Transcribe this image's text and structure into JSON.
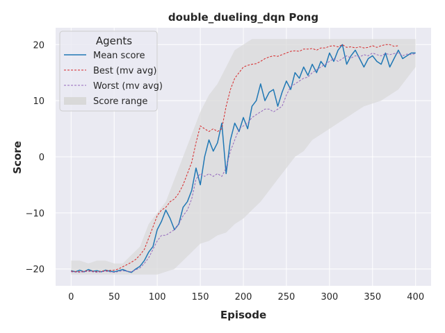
{
  "chart_data": {
    "type": "line",
    "title": "double_dueling_dqn Pong",
    "xlabel": "Episode",
    "ylabel": "Score",
    "xlim": [
      -18,
      418
    ],
    "ylim": [
      -23,
      23
    ],
    "xticks": [
      "0",
      "50",
      "100",
      "150",
      "200",
      "250",
      "300",
      "350",
      "400"
    ],
    "yticks": [
      "−20",
      "−10",
      "0",
      "10",
      "20"
    ],
    "grid": true,
    "legend": {
      "title": "Agents",
      "placement": "upper-left",
      "entries": [
        "Mean score",
        "Best (mv avg)",
        "Worst (mv avg)",
        "Score range"
      ]
    },
    "colors": {
      "mean": "#1f77b4",
      "best": "#d62728",
      "worst": "#9467bd",
      "range": "#d9d9d9",
      "plot_bg": "#eaeaf2",
      "grid": "#ffffff"
    },
    "series": [
      {
        "name": "Mean score",
        "style": "solid",
        "x": [
          0,
          5,
          10,
          15,
          20,
          25,
          30,
          35,
          40,
          45,
          50,
          55,
          60,
          65,
          70,
          75,
          80,
          85,
          90,
          95,
          100,
          105,
          110,
          115,
          120,
          125,
          130,
          135,
          140,
          145,
          150,
          155,
          160,
          165,
          170,
          175,
          180,
          185,
          190,
          195,
          200,
          205,
          210,
          215,
          220,
          225,
          230,
          235,
          240,
          245,
          250,
          255,
          260,
          265,
          270,
          275,
          280,
          285,
          290,
          295,
          300,
          305,
          310,
          315,
          320,
          325,
          330,
          335,
          340,
          345,
          350,
          355,
          360,
          365,
          370,
          375,
          380,
          385,
          390,
          395,
          400
        ],
        "values": [
          -20.3,
          -20.5,
          -20.2,
          -20.5,
          -20.1,
          -20.4,
          -20.3,
          -20.5,
          -20.2,
          -20.4,
          -20.5,
          -20.3,
          -20.1,
          -20.4,
          -20.6,
          -20.0,
          -19.5,
          -18.5,
          -17.0,
          -16.0,
          -13.0,
          -11.5,
          -9.5,
          -11.0,
          -13.0,
          -12.0,
          -9.0,
          -8.0,
          -6.0,
          -2.0,
          -5.0,
          0.0,
          3.0,
          1.0,
          2.5,
          6.0,
          -3.0,
          3.0,
          6.0,
          4.5,
          7.0,
          5.0,
          9.0,
          10.0,
          13.0,
          10.0,
          11.5,
          12.0,
          9.0,
          11.5,
          13.5,
          12.0,
          15.0,
          14.0,
          16.0,
          14.5,
          16.5,
          15.0,
          17.0,
          16.0,
          18.5,
          17.0,
          19.0,
          20.0,
          16.5,
          18.0,
          19.0,
          17.5,
          16.0,
          17.5,
          18.0,
          17.0,
          16.5,
          18.5,
          16.0,
          17.5,
          19.0,
          17.5,
          18.0,
          18.5,
          18.5
        ]
      },
      {
        "name": "Best (mv avg)",
        "style": "dashed",
        "x": [
          0,
          10,
          20,
          30,
          40,
          50,
          55,
          60,
          65,
          70,
          75,
          80,
          85,
          90,
          95,
          100,
          105,
          110,
          115,
          120,
          125,
          130,
          135,
          140,
          145,
          150,
          155,
          160,
          165,
          170,
          175,
          180,
          185,
          190,
          195,
          200,
          205,
          210,
          215,
          220,
          225,
          230,
          235,
          240,
          245,
          250,
          255,
          260,
          265,
          270,
          275,
          280,
          285,
          290,
          295,
          300,
          305,
          310,
          315,
          320,
          325,
          330,
          335,
          340,
          345,
          350,
          355,
          360,
          365,
          370,
          375,
          380
        ],
        "values": [
          -20.4,
          -20.5,
          -20.3,
          -20.5,
          -20.3,
          -20.2,
          -20.0,
          -19.6,
          -19.2,
          -18.8,
          -18.3,
          -17.5,
          -16.5,
          -14.5,
          -12.5,
          -10.5,
          -9.5,
          -9.0,
          -8.0,
          -7.5,
          -6.5,
          -5.0,
          -3.0,
          -1.0,
          2.5,
          5.5,
          5.0,
          4.5,
          5.0,
          4.5,
          5.0,
          9.0,
          12.0,
          14.0,
          15.0,
          16.0,
          16.3,
          16.5,
          16.6,
          17.0,
          17.5,
          17.8,
          18.0,
          17.9,
          18.2,
          18.5,
          18.8,
          18.9,
          18.8,
          19.2,
          19.2,
          19.3,
          19.0,
          19.4,
          19.4,
          19.7,
          19.8,
          19.6,
          20.0,
          19.5,
          19.6,
          19.4,
          19.6,
          19.4,
          19.5,
          19.8,
          19.5,
          19.8,
          20.0,
          20.0,
          19.7,
          19.8
        ]
      },
      {
        "name": "Worst (mv avg)",
        "style": "dashed",
        "x": [
          0,
          10,
          20,
          30,
          40,
          50,
          60,
          70,
          80,
          85,
          90,
          95,
          100,
          105,
          110,
          115,
          120,
          125,
          130,
          135,
          140,
          145,
          150,
          155,
          160,
          165,
          170,
          175,
          180,
          185,
          190,
          195,
          200,
          205,
          210,
          215,
          220,
          225,
          230,
          235,
          240,
          245,
          250,
          255,
          260,
          265,
          270,
          275,
          280,
          285,
          290,
          295,
          300,
          305,
          310,
          315,
          320,
          325,
          330,
          335,
          340,
          345,
          350,
          355,
          360,
          365,
          370,
          375,
          380,
          385,
          390,
          395,
          400
        ],
        "values": [
          -20.5,
          -20.6,
          -20.4,
          -20.6,
          -20.4,
          -20.6,
          -20.3,
          -20.5,
          -19.8,
          -19.0,
          -18.0,
          -16.5,
          -15.0,
          -14.0,
          -14.0,
          -13.5,
          -13.0,
          -12.0,
          -10.5,
          -9.5,
          -7.5,
          -4.0,
          -3.0,
          -3.5,
          -3.0,
          -3.5,
          -3.0,
          -3.5,
          -2.0,
          1.0,
          3.0,
          5.0,
          5.5,
          6.0,
          7.0,
          7.5,
          8.0,
          8.5,
          8.5,
          8.0,
          8.5,
          9.0,
          11.0,
          12.5,
          13.0,
          13.5,
          14.0,
          14.2,
          15.0,
          15.5,
          16.0,
          16.5,
          17.0,
          17.5,
          17.0,
          17.5,
          18.0,
          17.6,
          18.0,
          17.8,
          18.2,
          18.0,
          18.5,
          18.2,
          18.0,
          18.4,
          18.2,
          18.4,
          18.5,
          18.0,
          18.3,
          18.2,
          18.4
        ]
      },
      {
        "name": "Score range",
        "type": "area",
        "x": [
          0,
          10,
          20,
          30,
          40,
          50,
          60,
          70,
          80,
          90,
          100,
          110,
          120,
          130,
          140,
          150,
          160,
          170,
          180,
          190,
          200,
          210,
          220,
          230,
          240,
          250,
          260,
          270,
          280,
          290,
          300,
          310,
          320,
          330,
          340,
          350,
          360,
          370,
          380,
          390,
          400
        ],
        "low": [
          -21,
          -21,
          -21,
          -21,
          -21,
          -21,
          -21,
          -21,
          -21,
          -21,
          -21,
          -20.5,
          -20,
          -18.5,
          -17,
          -15.5,
          -15,
          -14,
          -13.5,
          -12,
          -11,
          -9.5,
          -8,
          -6,
          -4,
          -2,
          0,
          1,
          3,
          4,
          5,
          6,
          7,
          8,
          9,
          9.5,
          10,
          11,
          12,
          14,
          16
        ],
        "high": [
          -18.5,
          -18.5,
          -19,
          -18.5,
          -18.5,
          -19,
          -19,
          -17.5,
          -16,
          -12,
          -10,
          -8,
          -4,
          0,
          4,
          8,
          11,
          13,
          16,
          19,
          20,
          21,
          21,
          21,
          21,
          21,
          21,
          21,
          21,
          21,
          21,
          21,
          21,
          21,
          21,
          21,
          21,
          21,
          21,
          21,
          21
        ]
      }
    ]
  }
}
